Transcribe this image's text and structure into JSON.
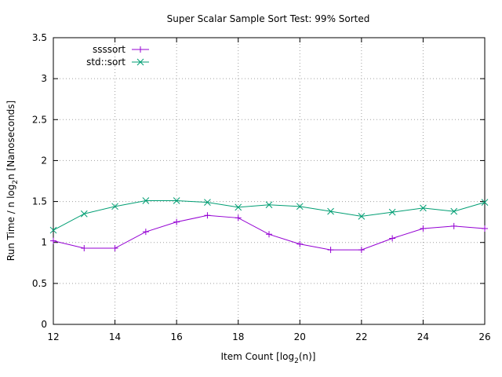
{
  "chart_data": {
    "type": "line",
    "title": "Super Scalar Sample Sort Test: 99% Sorted",
    "xlabel_text": "Item Count [log",
    "xlabel_sub": "2",
    "xlabel_end": "(n)]",
    "ylabel_text": "Run Time / n log",
    "ylabel_sub": "2",
    "ylabel_end": "n [Nanoseconds]",
    "xlim": [
      12,
      26
    ],
    "ylim": [
      0,
      3.5
    ],
    "xticks": [
      12,
      14,
      16,
      18,
      20,
      22,
      24,
      26
    ],
    "yticks": [
      0,
      0.5,
      1,
      1.5,
      2,
      2.5,
      3,
      3.5
    ],
    "ytick_labels": [
      "0",
      "0.5",
      "1",
      "1.5",
      "2",
      "2.5",
      "3",
      "3.5"
    ],
    "grid": true,
    "legend_position": "top-left",
    "x": [
      12,
      13,
      14,
      15,
      16,
      17,
      18,
      19,
      20,
      21,
      22,
      23,
      24,
      25,
      26
    ],
    "series": [
      {
        "name": "ssssort",
        "color": "#9400d3",
        "marker": "plus",
        "values": [
          1.02,
          0.93,
          0.93,
          1.13,
          1.25,
          1.33,
          1.3,
          1.1,
          0.98,
          0.91,
          0.91,
          1.05,
          1.17,
          1.2,
          1.17
        ]
      },
      {
        "name": "std::sort",
        "color": "#009e73",
        "marker": "cross",
        "values": [
          1.15,
          1.35,
          1.44,
          1.51,
          1.51,
          1.49,
          1.43,
          1.46,
          1.44,
          1.38,
          1.32,
          1.37,
          1.42,
          1.38,
          1.49
        ]
      }
    ]
  }
}
